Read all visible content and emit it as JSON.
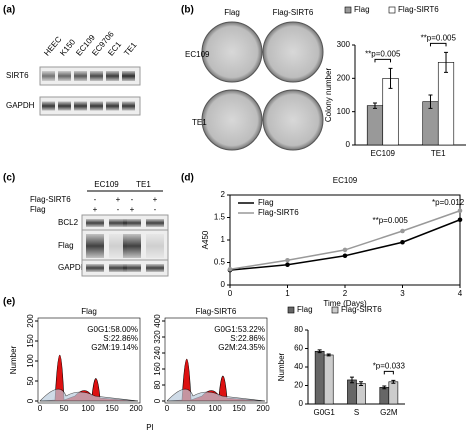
{
  "panel_labels": [
    "(a)",
    "(b)",
    "(c)",
    "(d)",
    "(e)"
  ],
  "blot_a": {
    "lanes": [
      "HEEC",
      "K150",
      "EC109",
      "EC9706",
      "EC1",
      "TE1"
    ],
    "rows": [
      "SIRT6",
      "GAPDH"
    ]
  },
  "colony_b": {
    "headers": [
      "Flag",
      "Flag-SIRT6"
    ],
    "rows": [
      "EC109",
      "TE1"
    ]
  },
  "blot_c": {
    "groups": [
      "EC109",
      "TE1"
    ],
    "conditions": [
      "Flag-SIRT6",
      "Flag"
    ],
    "signs": [
      [
        "-",
        "+",
        "-",
        "+"
      ],
      [
        "+",
        "-",
        "+",
        "-"
      ]
    ],
    "rows": [
      "BCL2",
      "Flag",
      "GAPDH"
    ]
  },
  "flow_e": {
    "plots": [
      {
        "title": "Flag",
        "stats": [
          "G0G1:58.00%",
          "S:22.86%",
          "G2M:19.14%"
        ],
        "yticks": [
          0,
          50,
          100,
          150,
          200
        ]
      },
      {
        "title": "Flag-SIRT6",
        "stats": [
          "G0G1:53.22%",
          "S:22.86%",
          "G2M:24.35%"
        ],
        "yticks": [
          0,
          80,
          160,
          240,
          320,
          400
        ]
      }
    ],
    "xticks": [
      0,
      50,
      100,
      150,
      200
    ],
    "y_label": "Number",
    "x_label": "PI"
  },
  "chart_data": [
    {
      "type": "bar",
      "y_label": "Colony number",
      "categories": [
        "EC109",
        "TE1"
      ],
      "series": [
        {
          "name": "Flag",
          "color": "#999999",
          "values": [
            118,
            130
          ],
          "errors": [
            8,
            20
          ]
        },
        {
          "name": "Flag-SIRT6",
          "color": "#ffffff",
          "values": [
            200,
            248
          ],
          "errors": [
            30,
            30
          ]
        }
      ],
      "ylim": [
        0,
        300
      ],
      "yticks": [
        0,
        100,
        200,
        300
      ],
      "legend": "top",
      "annotations": [
        "**p=0.005",
        "**p=0.005"
      ]
    },
    {
      "type": "line",
      "title": "EC109",
      "x_label": "Time (Days)",
      "y_label": "A450",
      "x": [
        0,
        1,
        2,
        3,
        4
      ],
      "series": [
        {
          "name": "Flag",
          "color": "#000000",
          "values": [
            0.33,
            0.45,
            0.65,
            0.95,
            1.45
          ]
        },
        {
          "name": "Flag-SIRT6",
          "color": "#999999",
          "values": [
            0.35,
            0.55,
            0.78,
            1.2,
            1.65
          ]
        }
      ],
      "xlim": [
        0,
        4
      ],
      "xticks": [
        0,
        1,
        2,
        3,
        4
      ],
      "ylim": [
        0,
        2
      ],
      "yticks": [
        0,
        0.5,
        1,
        1.5,
        2
      ],
      "legend": "top-left",
      "annotations": [
        "**p=0.005",
        "*p=0.012"
      ]
    },
    {
      "type": "bar",
      "y_label": "Number",
      "categories": [
        "G0G1",
        "S",
        "G2M"
      ],
      "series": [
        {
          "name": "Flag",
          "color": "#666666",
          "values": [
            57,
            26,
            18
          ],
          "errors": [
            1.5,
            3,
            1.5
          ]
        },
        {
          "name": "Flag-SIRT6",
          "color": "#cccccc",
          "values": [
            53,
            22,
            24
          ],
          "errors": [
            1,
            2,
            1.5
          ]
        }
      ],
      "ylim": [
        0,
        80
      ],
      "yticks": [
        0,
        20,
        40,
        60,
        80
      ],
      "legend": "top",
      "annotations": [
        "*p=0.033"
      ]
    }
  ]
}
